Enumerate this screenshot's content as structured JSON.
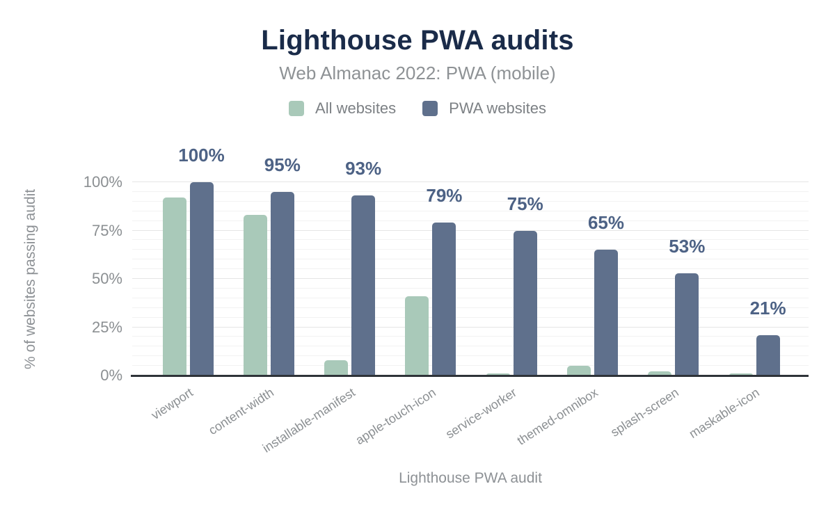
{
  "title": "Lighthouse PWA audits",
  "subtitle": "Web Almanac 2022: PWA (mobile)",
  "colors": {
    "title": "#1a2b49",
    "secondary_text": "#8e9295",
    "axis_text": "#8b8f92",
    "data_label": "#4d6285",
    "series_all_websites": "#a9c9b9",
    "series_pwa_websites": "#5f708c",
    "gridline_minor": "#f2f2f2",
    "gridline_major": "#e5e5e5",
    "axis_line": "#2e3338",
    "background": "#ffffff"
  },
  "chart_data": {
    "type": "bar",
    "title": "Lighthouse PWA audits",
    "subtitle": "Web Almanac 2022: PWA (mobile)",
    "xlabel": "Lighthouse PWA audit",
    "ylabel": "% of websites passing audit",
    "categories": [
      "viewport",
      "content-width",
      "installable-manifest",
      "apple-touch-icon",
      "service-worker",
      "themed-omnibox",
      "splash-screen",
      "maskable-icon"
    ],
    "series": [
      {
        "name": "All websites",
        "color": "#a9c9b9",
        "values": [
          92,
          83,
          8,
          41,
          1,
          5,
          2,
          1
        ]
      },
      {
        "name": "PWA websites",
        "color": "#5f708c",
        "values": [
          100,
          95,
          93,
          79,
          75,
          65,
          53,
          21
        ]
      }
    ],
    "bar_labels": {
      "labeled_series": "PWA websites",
      "labels": [
        "100%",
        "95%",
        "93%",
        "79%",
        "75%",
        "65%",
        "53%",
        "21%"
      ]
    },
    "ylim": [
      0,
      100
    ],
    "ytick_values": [
      0,
      25,
      50,
      75,
      100
    ],
    "ytick_labels": [
      "0%",
      "25%",
      "50%",
      "75%",
      "100%"
    ],
    "grid": {
      "minor_step": 5,
      "major_step": 25
    },
    "legend_position": "top"
  }
}
